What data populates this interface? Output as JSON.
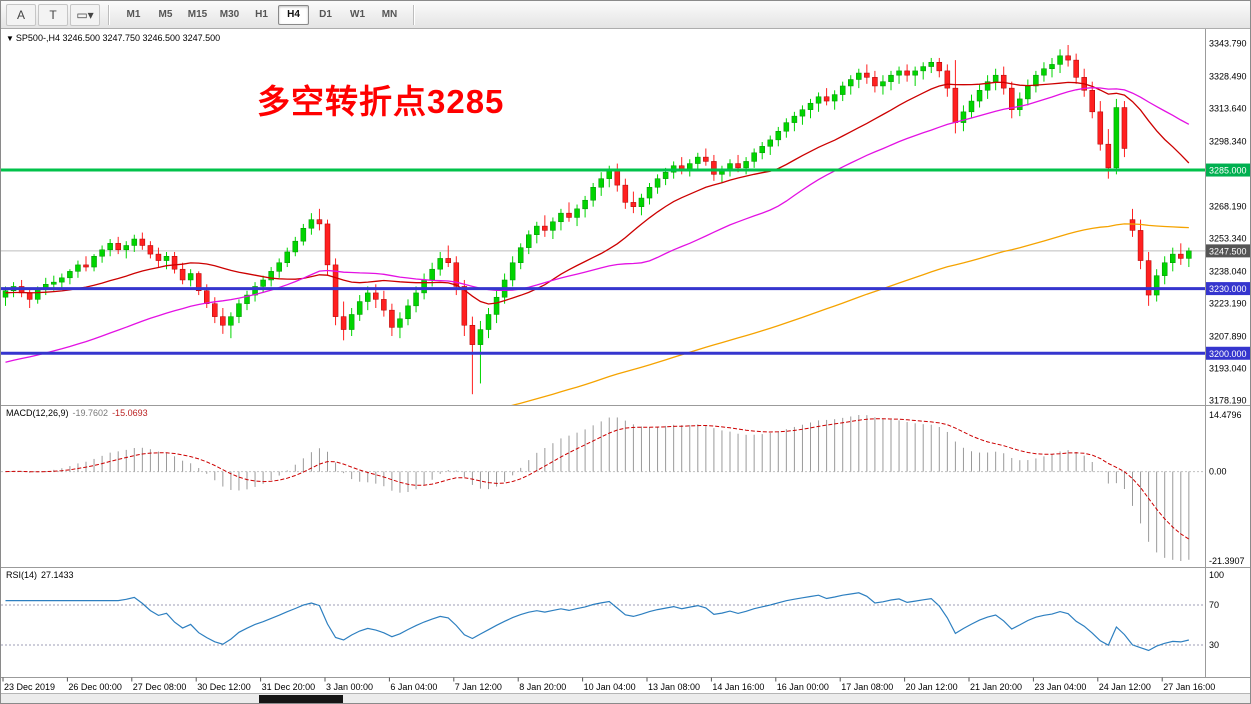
{
  "toolbar": {
    "buttons": [
      {
        "name": "text-annotation-button",
        "glyph": "A"
      },
      {
        "name": "text-label-button",
        "glyph": "T"
      },
      {
        "name": "shapes-dropdown-button",
        "glyph": "▭▾"
      }
    ],
    "timeframes": [
      "M1",
      "M5",
      "M15",
      "M30",
      "H1",
      "H4",
      "D1",
      "W1",
      "MN"
    ],
    "active_timeframe": "H4"
  },
  "main_chart": {
    "collapse_icon": "▼",
    "symbol_line": "SP500-,H4 3246.500 3247.750 3246.500 3247.500",
    "annotation_text": "多空转折点3285",
    "annotation_color": "#FF0000"
  },
  "price_axis": {
    "labels": [
      {
        "v": 3343.79,
        "t": "3343.790"
      },
      {
        "v": 3328.49,
        "t": "3328.490"
      },
      {
        "v": 3313.64,
        "t": "3313.640"
      },
      {
        "v": 3298.34,
        "t": "3298.340"
      },
      {
        "v": 3268.19,
        "t": "3268.190"
      },
      {
        "v": 3253.34,
        "t": "3253.340"
      },
      {
        "v": 3238.04,
        "t": "3238.040"
      },
      {
        "v": 3223.19,
        "t": "3223.190"
      },
      {
        "v": 3207.89,
        "t": "3207.890"
      },
      {
        "v": 3193.04,
        "t": "3193.040"
      },
      {
        "v": 3178.19,
        "t": "3178.190"
      }
    ],
    "badges": [
      {
        "v": 3285.0,
        "t": "3285.000",
        "bg": "#00B050"
      },
      {
        "v": 3247.5,
        "t": "3247.500",
        "bg": "#555555"
      },
      {
        "v": 3230.0,
        "t": "3230.000",
        "bg": "#3535CE"
      },
      {
        "v": 3200.0,
        "t": "3200.000",
        "bg": "#3535CE"
      }
    ]
  },
  "macd_panel": {
    "title": "MACD(12,26,9)",
    "main_value": "-19.7602",
    "signal_value": "-15.0693",
    "axis_top": "14.4796",
    "axis_zero": "0.00",
    "axis_bottom": "-21.3907"
  },
  "rsi_panel": {
    "title": "RSI(14)",
    "value": "27.1433",
    "axis_labels": [
      "100",
      "70",
      "30"
    ]
  },
  "chart_data": {
    "type": "candlestick",
    "symbol": "SP500-",
    "timeframe": "H4",
    "current_price": 3247.5,
    "price_range": [
      3176,
      3349.5
    ],
    "x_label_every": 8,
    "x_labels": [
      "23 Dec 2019",
      "26 Dec 00:00",
      "27 Dec 08:00",
      "30 Dec 12:00",
      "31 Dec 20:00",
      "3 Jan 00:00",
      "6 Jan 04:00",
      "7 Jan 12:00",
      "8 Jan 20:00",
      "10 Jan 04:00",
      "13 Jan 08:00",
      "14 Jan 16:00",
      "16 Jan 00:00",
      "17 Jan 08:00",
      "20 Jan 12:00",
      "21 Jan 20:00",
      "23 Jan 04:00",
      "24 Jan 12:00",
      "27 Jan 16:00"
    ],
    "levels": [
      {
        "value": 3285,
        "color": "#00C24A",
        "width": 3,
        "label": "3285.000"
      },
      {
        "value": 3230,
        "color": "#3535CE",
        "width": 3,
        "label": "3230.000"
      },
      {
        "value": 3200,
        "color": "#3535CE",
        "width": 3,
        "label": "3200.000"
      }
    ],
    "moving_averages": [
      {
        "type": "sma",
        "period": 20,
        "seed": 3228,
        "color": "#CC0000"
      },
      {
        "type": "sma",
        "period": 40,
        "seed": 3195,
        "color": "#E311E3"
      },
      {
        "type": "ema",
        "period": 150,
        "seed": 3100,
        "color": "#F5A300"
      }
    ],
    "macd": {
      "fast": 12,
      "slow": 26,
      "signal": 9
    },
    "rsi": {
      "period": 14,
      "levels": [
        70,
        30
      ]
    },
    "colors": {
      "bull": "#00D400",
      "bull_edge": "#009000",
      "bear": "#FF2020",
      "bear_edge": "#AA0000",
      "macd_hist": "#9A9A9A",
      "macd_signal": "#CC0000",
      "rsi_line": "#2D7FC0",
      "rsi_levels": "#9E9EB4",
      "current_price_line": "#BDBDBD"
    },
    "ohlc": [
      [
        3226,
        3231,
        3222,
        3229
      ],
      [
        3229,
        3233,
        3226,
        3231
      ],
      [
        3231,
        3234,
        3226,
        3228
      ],
      [
        3228,
        3230,
        3221,
        3225
      ],
      [
        3225,
        3231,
        3223,
        3230
      ],
      [
        3230,
        3235,
        3227,
        3232
      ],
      [
        3232,
        3236,
        3229,
        3233
      ],
      [
        3233,
        3237,
        3230,
        3235
      ],
      [
        3235,
        3239,
        3232,
        3238
      ],
      [
        3238,
        3243,
        3235,
        3241
      ],
      [
        3241,
        3245,
        3238,
        3240
      ],
      [
        3240,
        3246,
        3238,
        3245
      ],
      [
        3245,
        3250,
        3242,
        3248
      ],
      [
        3248,
        3253,
        3245,
        3251
      ],
      [
        3251,
        3254,
        3246,
        3248
      ],
      [
        3248,
        3252,
        3244,
        3250
      ],
      [
        3250,
        3255,
        3247,
        3253
      ],
      [
        3253,
        3256,
        3248,
        3250
      ],
      [
        3250,
        3252,
        3244,
        3246
      ],
      [
        3246,
        3249,
        3240,
        3243
      ],
      [
        3243,
        3247,
        3239,
        3245
      ],
      [
        3245,
        3247,
        3237,
        3239
      ],
      [
        3239,
        3242,
        3232,
        3234
      ],
      [
        3234,
        3239,
        3231,
        3237
      ],
      [
        3237,
        3238,
        3227,
        3229
      ],
      [
        3229,
        3232,
        3221,
        3223
      ],
      [
        3223,
        3226,
        3214,
        3217
      ],
      [
        3217,
        3221,
        3209,
        3213
      ],
      [
        3213,
        3219,
        3207,
        3217
      ],
      [
        3217,
        3225,
        3214,
        3223
      ],
      [
        3223,
        3229,
        3220,
        3227
      ],
      [
        3227,
        3233,
        3224,
        3231
      ],
      [
        3231,
        3236,
        3228,
        3234
      ],
      [
        3234,
        3240,
        3231,
        3238
      ],
      [
        3238,
        3244,
        3235,
        3242
      ],
      [
        3242,
        3249,
        3240,
        3247
      ],
      [
        3247,
        3254,
        3245,
        3252
      ],
      [
        3252,
        3260,
        3250,
        3258
      ],
      [
        3258,
        3265,
        3255,
        3262
      ],
      [
        3262,
        3267,
        3257,
        3260
      ],
      [
        3260,
        3262,
        3236,
        3241
      ],
      [
        3241,
        3244,
        3213,
        3217
      ],
      [
        3217,
        3224,
        3206,
        3211
      ],
      [
        3211,
        3221,
        3208,
        3218
      ],
      [
        3218,
        3227,
        3215,
        3224
      ],
      [
        3224,
        3231,
        3220,
        3228
      ],
      [
        3228,
        3232,
        3221,
        3225
      ],
      [
        3225,
        3229,
        3217,
        3220
      ],
      [
        3220,
        3223,
        3208,
        3212
      ],
      [
        3212,
        3219,
        3207,
        3216
      ],
      [
        3216,
        3225,
        3213,
        3222
      ],
      [
        3222,
        3231,
        3219,
        3228
      ],
      [
        3228,
        3237,
        3225,
        3234
      ],
      [
        3234,
        3242,
        3231,
        3239
      ],
      [
        3239,
        3247,
        3236,
        3244
      ],
      [
        3244,
        3250,
        3240,
        3242
      ],
      [
        3242,
        3245,
        3227,
        3231
      ],
      [
        3231,
        3234,
        3208,
        3213
      ],
      [
        3213,
        3217,
        3181,
        3204
      ],
      [
        3204,
        3215,
        3186,
        3211
      ],
      [
        3211,
        3221,
        3207,
        3218
      ],
      [
        3218,
        3229,
        3214,
        3226
      ],
      [
        3226,
        3237,
        3223,
        3234
      ],
      [
        3234,
        3245,
        3231,
        3242
      ],
      [
        3242,
        3251,
        3239,
        3249
      ],
      [
        3249,
        3257,
        3246,
        3255
      ],
      [
        3255,
        3261,
        3251,
        3259
      ],
      [
        3259,
        3264,
        3254,
        3257
      ],
      [
        3257,
        3263,
        3253,
        3261
      ],
      [
        3261,
        3267,
        3257,
        3265
      ],
      [
        3265,
        3270,
        3261,
        3263
      ],
      [
        3263,
        3269,
        3259,
        3267
      ],
      [
        3267,
        3273,
        3263,
        3271
      ],
      [
        3271,
        3279,
        3268,
        3277
      ],
      [
        3277,
        3284,
        3273,
        3281
      ],
      [
        3281,
        3287,
        3277,
        3285
      ],
      [
        3285,
        3288,
        3275,
        3278
      ],
      [
        3278,
        3281,
        3267,
        3270
      ],
      [
        3270,
        3275,
        3265,
        3268
      ],
      [
        3268,
        3274,
        3264,
        3272
      ],
      [
        3272,
        3279,
        3269,
        3277
      ],
      [
        3277,
        3283,
        3274,
        3281
      ],
      [
        3281,
        3286,
        3278,
        3284
      ],
      [
        3284,
        3289,
        3281,
        3287
      ],
      [
        3287,
        3291,
        3283,
        3285
      ],
      [
        3285,
        3290,
        3282,
        3288
      ],
      [
        3288,
        3293,
        3285,
        3291
      ],
      [
        3291,
        3295,
        3287,
        3289
      ],
      [
        3289,
        3292,
        3280,
        3283
      ],
      [
        3283,
        3287,
        3279,
        3285
      ],
      [
        3285,
        3290,
        3282,
        3288
      ],
      [
        3288,
        3292,
        3284,
        3286
      ],
      [
        3286,
        3291,
        3283,
        3289
      ],
      [
        3289,
        3295,
        3286,
        3293
      ],
      [
        3293,
        3298,
        3290,
        3296
      ],
      [
        3296,
        3301,
        3292,
        3299
      ],
      [
        3299,
        3305,
        3296,
        3303
      ],
      [
        3303,
        3309,
        3300,
        3307
      ],
      [
        3307,
        3312,
        3303,
        3310
      ],
      [
        3310,
        3315,
        3306,
        3313
      ],
      [
        3313,
        3318,
        3309,
        3316
      ],
      [
        3316,
        3321,
        3312,
        3319
      ],
      [
        3319,
        3323,
        3315,
        3317
      ],
      [
        3317,
        3322,
        3313,
        3320
      ],
      [
        3320,
        3326,
        3317,
        3324
      ],
      [
        3324,
        3329,
        3320,
        3327
      ],
      [
        3327,
        3332,
        3323,
        3330
      ],
      [
        3330,
        3334,
        3325,
        3328
      ],
      [
        3328,
        3331,
        3321,
        3324
      ],
      [
        3324,
        3329,
        3320,
        3326
      ],
      [
        3326,
        3331,
        3322,
        3329
      ],
      [
        3329,
        3333,
        3325,
        3331
      ],
      [
        3331,
        3334,
        3326,
        3329
      ],
      [
        3329,
        3333,
        3324,
        3331
      ],
      [
        3331,
        3335,
        3327,
        3333
      ],
      [
        3333,
        3337,
        3330,
        3335
      ],
      [
        3335,
        3337,
        3328,
        3331
      ],
      [
        3331,
        3334,
        3319,
        3323
      ],
      [
        3323,
        3336,
        3302,
        3307
      ],
      [
        3307,
        3315,
        3303,
        3312
      ],
      [
        3312,
        3320,
        3309,
        3317
      ],
      [
        3317,
        3325,
        3314,
        3322
      ],
      [
        3322,
        3329,
        3318,
        3326
      ],
      [
        3326,
        3332,
        3322,
        3329
      ],
      [
        3329,
        3333,
        3320,
        3323
      ],
      [
        3323,
        3326,
        3309,
        3313
      ],
      [
        3313,
        3321,
        3310,
        3318
      ],
      [
        3318,
        3327,
        3315,
        3324
      ],
      [
        3324,
        3331,
        3321,
        3329
      ],
      [
        3329,
        3335,
        3326,
        3332
      ],
      [
        3332,
        3337,
        3328,
        3334
      ],
      [
        3334,
        3341,
        3330,
        3338
      ],
      [
        3338,
        3343,
        3333,
        3336
      ],
      [
        3336,
        3339,
        3325,
        3328
      ],
      [
        3328,
        3332,
        3319,
        3322
      ],
      [
        3322,
        3326,
        3309,
        3312
      ],
      [
        3312,
        3317,
        3294,
        3297
      ],
      [
        3297,
        3304,
        3281,
        3286
      ],
      [
        3286,
        3318,
        3283,
        3314
      ],
      [
        3314,
        3317,
        3291,
        3295
      ],
      [
        3262,
        3267,
        3254,
        3257
      ],
      [
        3257,
        3262,
        3239,
        3243
      ],
      [
        3243,
        3247,
        3222,
        3227
      ],
      [
        3227,
        3239,
        3224,
        3236
      ],
      [
        3236,
        3245,
        3232,
        3242
      ],
      [
        3242,
        3249,
        3238,
        3246
      ],
      [
        3246,
        3251,
        3241,
        3244
      ],
      [
        3244,
        3249,
        3240,
        3247.5
      ]
    ]
  }
}
